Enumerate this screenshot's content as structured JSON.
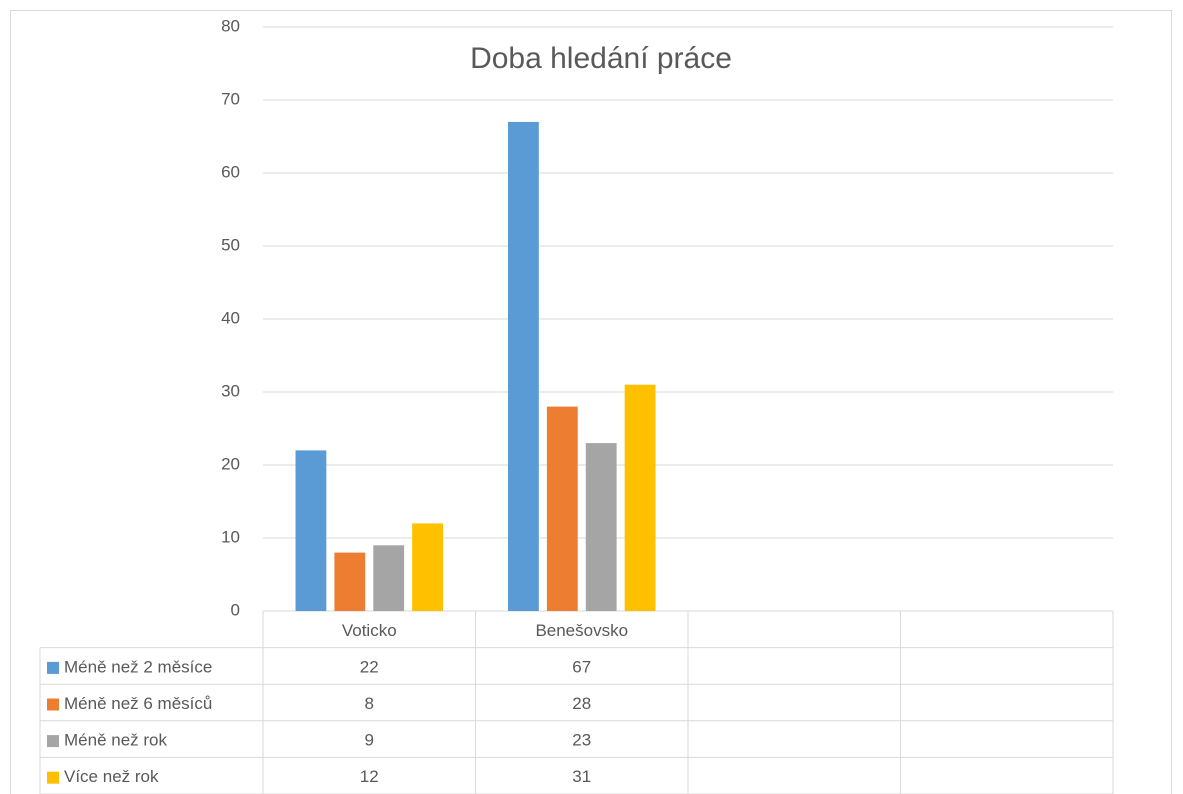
{
  "chart_data": {
    "type": "bar",
    "title": "Doba hledání práce",
    "categories": [
      "Voticko",
      "Benešovsko",
      null,
      null
    ],
    "series": [
      {
        "name": "Méně než 2 měsíce",
        "color": "#5b9bd5",
        "values": [
          22,
          67,
          null,
          null
        ]
      },
      {
        "name": "Méně než 6 měsíců",
        "color": "#ed7d31",
        "values": [
          8,
          28,
          null,
          null
        ]
      },
      {
        "name": "Méně než rok",
        "color": "#a5a5a5",
        "values": [
          9,
          23,
          null,
          null
        ]
      },
      {
        "name": "Více než rok",
        "color": "#ffc000",
        "values": [
          12,
          31,
          null,
          null
        ]
      }
    ],
    "ylim": [
      0,
      80
    ],
    "yticks": [
      0,
      10,
      20,
      30,
      40,
      50,
      60,
      70,
      80
    ],
    "grid": true,
    "data_table": true
  }
}
